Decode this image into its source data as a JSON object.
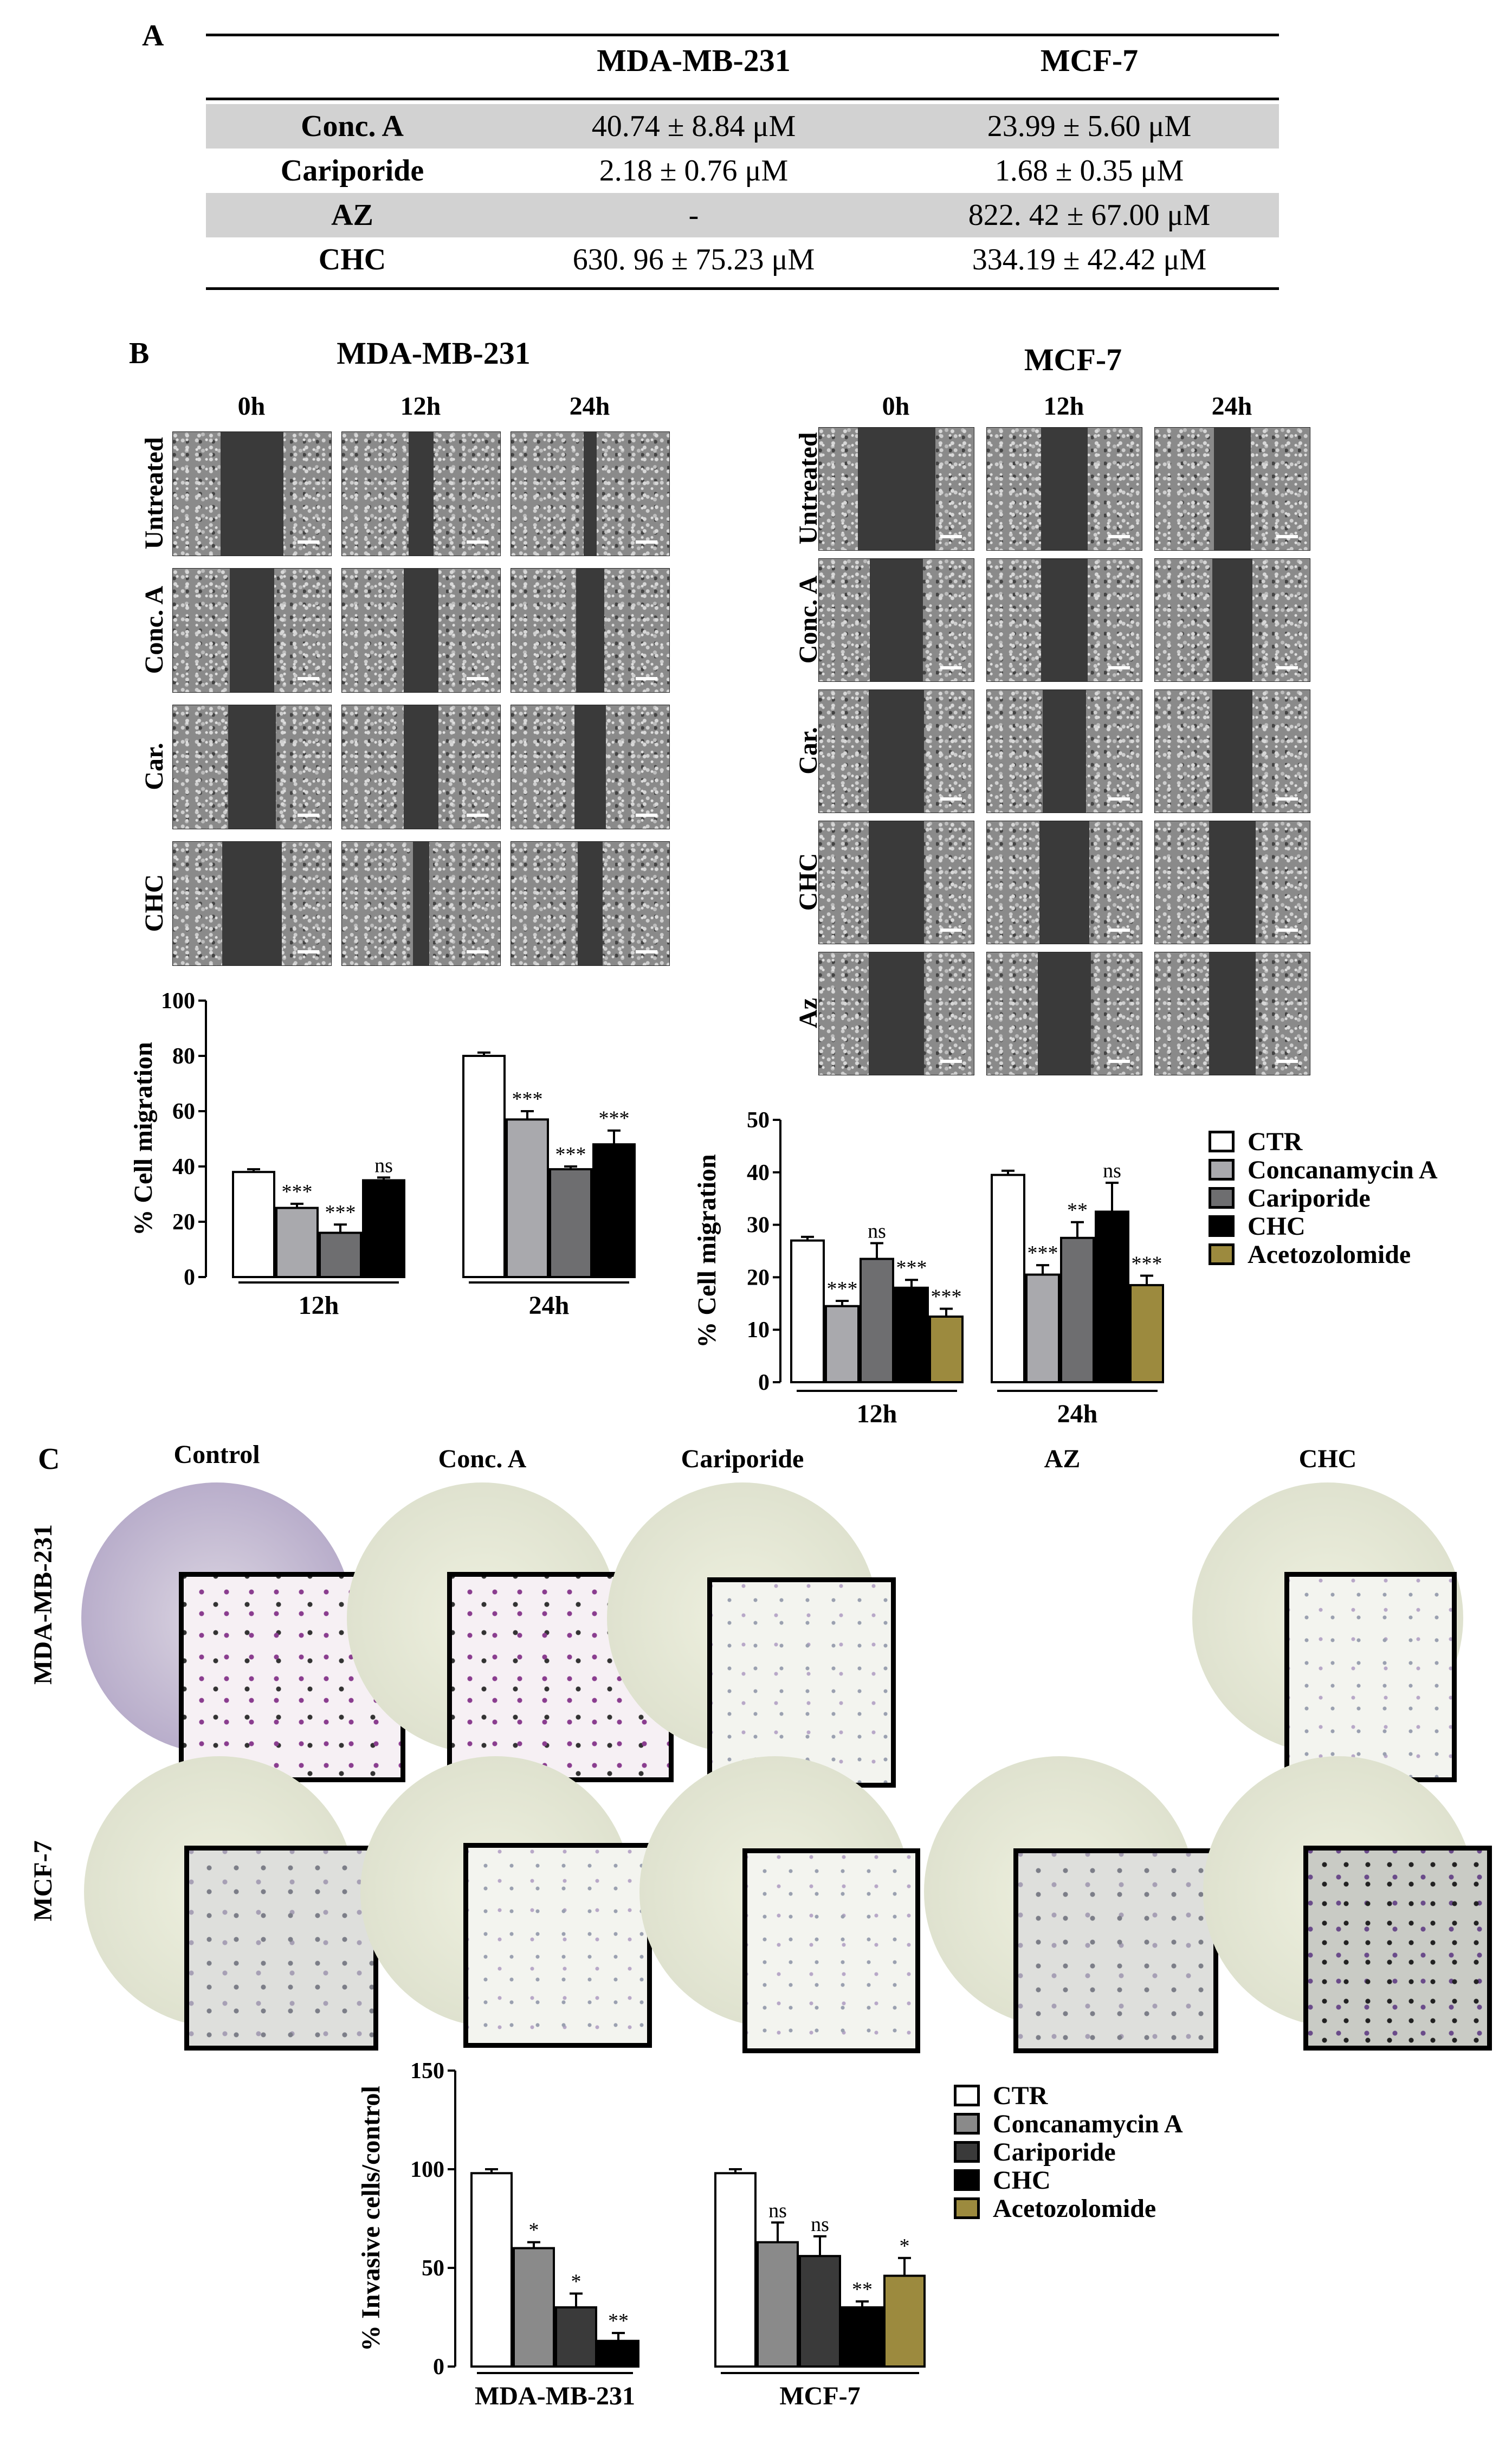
{
  "panelA": {
    "letter": "A",
    "headers": [
      "",
      "MDA-MB-231",
      "MCF-7"
    ],
    "rows": [
      {
        "name": "Conc. A",
        "mda": "40.74 ± 8.84 μM",
        "mcf": "23.99 ± 5.60 μM",
        "shaded": true
      },
      {
        "name": "Cariporide",
        "mda": "2.18 ± 0.76 μM",
        "mcf": "1.68 ± 0.35 μM",
        "shaded": false
      },
      {
        "name": "AZ",
        "mda": "-",
        "mcf": "822. 42 ± 67.00 μM",
        "shaded": true
      },
      {
        "name": "CHC",
        "mda": "630. 96 ± 75.23 μM",
        "mcf": "334.19 ± 42.42 μM",
        "shaded": false
      }
    ]
  },
  "panelB": {
    "letter": "B",
    "mda_title": "MDA-MB-231",
    "mcf_title": "MCF-7",
    "times": [
      "0h",
      "12h",
      "24h"
    ],
    "mda_rows": [
      "Untreated",
      "Conc. A",
      "Car.",
      "CHC"
    ],
    "mcf_rows": [
      "Untreated",
      "Conc. A",
      "Car.",
      "CHC",
      "Az"
    ]
  },
  "panelC": {
    "letter": "C",
    "columns": [
      "Control",
      "Conc. A",
      "Cariporide",
      "AZ",
      "CHC"
    ],
    "rows": [
      "MDA-MB-231",
      "MCF-7"
    ]
  },
  "colors": {
    "CTR": "#ffffff",
    "Concanamycin A": "#a9a9ad",
    "Cariporide": "#6e6e70",
    "CHC": "#000000",
    "Acetozolomide": "#9c8a3e",
    "inv_conc": "#8a8a8a",
    "inv_car": "#3a3a3a"
  },
  "chart_data": [
    {
      "type": "bar",
      "ylabel": "% Cell migration",
      "ylim": [
        0,
        100
      ],
      "yticks": [
        0,
        20,
        40,
        60,
        80,
        100
      ],
      "groups": [
        "12h",
        "24h"
      ],
      "series": [
        {
          "name": "CTR",
          "values": [
            38,
            80
          ],
          "err": [
            1,
            1.2
          ],
          "sig": [
            "",
            ""
          ]
        },
        {
          "name": "Concanamycin A",
          "values": [
            25,
            57
          ],
          "err": [
            1.5,
            3
          ],
          "sig": [
            "***",
            "***"
          ]
        },
        {
          "name": "Cariporide",
          "values": [
            16,
            39
          ],
          "err": [
            3,
            1
          ],
          "sig": [
            "***",
            "***"
          ]
        },
        {
          "name": "CHC",
          "values": [
            35,
            48
          ],
          "err": [
            1,
            5
          ],
          "sig": [
            "ns",
            "***"
          ]
        }
      ]
    },
    {
      "type": "bar",
      "ylabel": "% Cell migration",
      "ylim": [
        0,
        50
      ],
      "yticks": [
        0,
        10,
        20,
        30,
        40,
        50
      ],
      "groups": [
        "12h",
        "24h"
      ],
      "series": [
        {
          "name": "CTR",
          "values": [
            27,
            39.5
          ],
          "err": [
            0.7,
            0.8
          ],
          "sig": [
            "",
            ""
          ]
        },
        {
          "name": "Concanamycin A",
          "values": [
            14.5,
            20.5
          ],
          "err": [
            1,
            1.8
          ],
          "sig": [
            "***",
            "***"
          ]
        },
        {
          "name": "Cariporide",
          "values": [
            23.5,
            27.5
          ],
          "err": [
            3,
            3
          ],
          "sig": [
            "ns",
            "**"
          ]
        },
        {
          "name": "CHC",
          "values": [
            18,
            32.5
          ],
          "err": [
            1.5,
            5.5
          ],
          "sig": [
            "***",
            "ns"
          ]
        },
        {
          "name": "Acetozolomide",
          "values": [
            12.5,
            18.5
          ],
          "err": [
            1.5,
            1.8
          ],
          "sig": [
            "***",
            "***"
          ]
        }
      ],
      "legend": [
        "CTR",
        "Concanamycin A",
        "Cariporide",
        "CHC",
        "Acetozolomide"
      ]
    },
    {
      "type": "bar",
      "ylabel": "% Invasive cells/control",
      "ylim": [
        0,
        150
      ],
      "yticks": [
        0,
        50,
        100,
        150
      ],
      "groups": [
        "MDA-MB-231",
        "MCF-7"
      ],
      "series": [
        {
          "name": "CTR",
          "values": [
            98,
            98
          ],
          "err": [
            2,
            2
          ],
          "sig": [
            "",
            ""
          ]
        },
        {
          "name": "Concanamycin A",
          "values": [
            60,
            63
          ],
          "err": [
            3,
            10
          ],
          "sig": [
            "*",
            "ns"
          ]
        },
        {
          "name": "Cariporide",
          "values": [
            30,
            56
          ],
          "err": [
            7,
            10
          ],
          "sig": [
            "*",
            "ns"
          ]
        },
        {
          "name": "CHC",
          "values": [
            13,
            30
          ],
          "err": [
            4,
            3
          ],
          "sig": [
            "**",
            "**"
          ]
        },
        {
          "name": "Acetozolomide",
          "values": [
            null,
            46
          ],
          "err": [
            null,
            9
          ],
          "sig": [
            "",
            "*"
          ]
        }
      ],
      "legend": [
        "CTR",
        "Concanamycin A",
        "Cariporide",
        "CHC",
        "Acetozolomide"
      ]
    }
  ]
}
